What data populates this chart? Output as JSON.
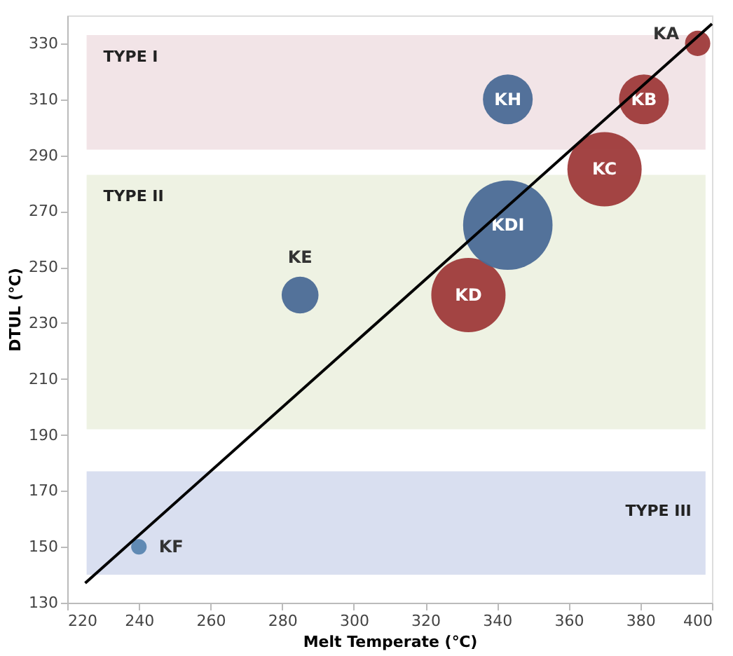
{
  "chart_data": {
    "type": "bubble",
    "xlabel": "Melt Temperate (℃)",
    "ylabel": "DTUL (℃)",
    "xlim": [
      220,
      400
    ],
    "ylim": [
      130,
      340
    ],
    "xticks": [
      220,
      240,
      260,
      280,
      300,
      320,
      340,
      360,
      380,
      400
    ],
    "yticks": [
      130,
      150,
      170,
      190,
      210,
      230,
      250,
      270,
      290,
      310,
      330
    ],
    "grid": false,
    "bands": [
      {
        "axis": "y",
        "from": 292,
        "to": 333,
        "color": "#f2e4e7",
        "label": "TYPE I"
      },
      {
        "axis": "y",
        "from": 192,
        "to": 283,
        "color": "#eef2e3",
        "label": "TYPE II"
      },
      {
        "axis": "y",
        "from": 140,
        "to": 177,
        "color": "#d9dff0",
        "label": "TYPE III"
      }
    ],
    "series": [
      {
        "name": "KA",
        "color": "#9e3a3a",
        "x": [
          396
        ],
        "values": [
          330
        ],
        "sizes": [
          0.08
        ]
      },
      {
        "name": "KB",
        "color": "#9e3a3a",
        "x": [
          381
        ],
        "values": [
          310
        ],
        "sizes": [
          0.31
        ]
      },
      {
        "name": "KC",
        "color": "#9e3a3a",
        "x": [
          370
        ],
        "values": [
          285
        ],
        "sizes": [
          0.69
        ]
      },
      {
        "name": "KD",
        "color": "#9e3a3a",
        "x": [
          332
        ],
        "values": [
          240
        ],
        "sizes": [
          0.69
        ]
      },
      {
        "name": "KDI",
        "color": "#4a6a96",
        "x": [
          343
        ],
        "values": [
          265
        ],
        "sizes": [
          1
        ]
      },
      {
        "name": "KH",
        "color": "#4a6a96",
        "x": [
          343
        ],
        "values": [
          310
        ],
        "sizes": [
          0.31
        ]
      },
      {
        "name": "KE",
        "color": "#4a6a96",
        "x": [
          285
        ],
        "values": [
          240
        ],
        "sizes": [
          0.17
        ]
      },
      {
        "name": "KF",
        "color": "#5a85b0",
        "x": [
          240
        ],
        "values": [
          150
        ],
        "sizes": [
          0.03
        ]
      },
      {
        "type": "line",
        "color": "#000000",
        "x": [
          225,
          400
        ],
        "values": [
          137,
          337
        ]
      }
    ]
  }
}
